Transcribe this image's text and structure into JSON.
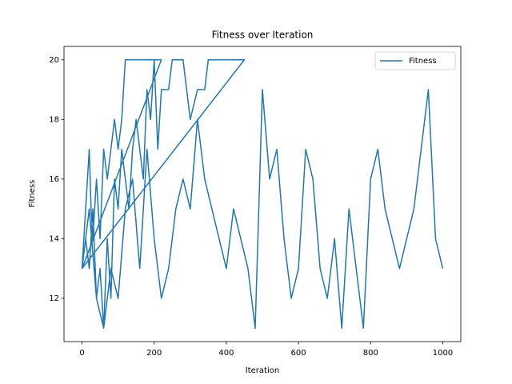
{
  "chart_data": {
    "type": "line",
    "title": "Fitness over Iteration",
    "x_label": "Iteration",
    "y_label": "Fitness",
    "x": [
      0,
      5,
      10,
      15,
      20,
      25,
      30,
      40,
      50,
      60,
      70,
      80,
      90,
      100,
      110,
      115,
      120,
      140,
      160,
      180,
      200,
      220,
      0,
      10,
      20,
      30,
      40,
      50,
      60,
      70,
      80,
      90,
      100,
      110,
      120,
      130,
      140,
      150,
      160,
      170,
      180,
      190,
      200,
      210,
      220,
      230,
      240,
      250,
      260,
      280,
      300,
      320,
      340,
      350,
      380,
      420,
      450,
      0,
      20,
      40,
      60,
      80,
      100,
      120,
      140,
      160,
      180,
      200,
      220,
      240,
      260,
      280,
      300,
      320,
      340,
      360,
      380,
      400,
      420,
      440,
      460,
      480,
      500,
      520,
      540,
      560,
      580,
      600,
      620,
      640,
      660,
      680,
      700,
      720,
      740,
      760,
      780,
      800,
      820,
      840,
      860,
      880,
      900,
      920,
      940,
      960,
      980,
      1000
    ],
    "series": [
      {
        "name": "Fitness",
        "color": "#1f77b4",
        "values": [
          13,
          14,
          15,
          16,
          17,
          15,
          14,
          16,
          14,
          17,
          16,
          17,
          18,
          17,
          18,
          19,
          20,
          20,
          20,
          20,
          20,
          20,
          13,
          14,
          13,
          15,
          12,
          13,
          11,
          14,
          12,
          16,
          15,
          17,
          16,
          15,
          17,
          18,
          17,
          16,
          19,
          18,
          20,
          17,
          19,
          19,
          19,
          20,
          20,
          20,
          18,
          19,
          19,
          20,
          20,
          20,
          20,
          13,
          15,
          12,
          11,
          13,
          12,
          15,
          16,
          13,
          17,
          14,
          12,
          13,
          15,
          16,
          15,
          18,
          16,
          15,
          14,
          13,
          15,
          14,
          13,
          11,
          19,
          16,
          17,
          14,
          12,
          13,
          17,
          16,
          13,
          12,
          14,
          11,
          15,
          13,
          11,
          16,
          17,
          15,
          14,
          13,
          14,
          15,
          17,
          19,
          14,
          13
        ]
      }
    ],
    "xlim": [
      -50,
      1050
    ],
    "ylim": [
      10.55,
      20.45
    ],
    "xticks": [
      0,
      200,
      400,
      600,
      800,
      1000
    ],
    "yticks": [
      12,
      14,
      16,
      18,
      20
    ],
    "legend": "upper right"
  }
}
